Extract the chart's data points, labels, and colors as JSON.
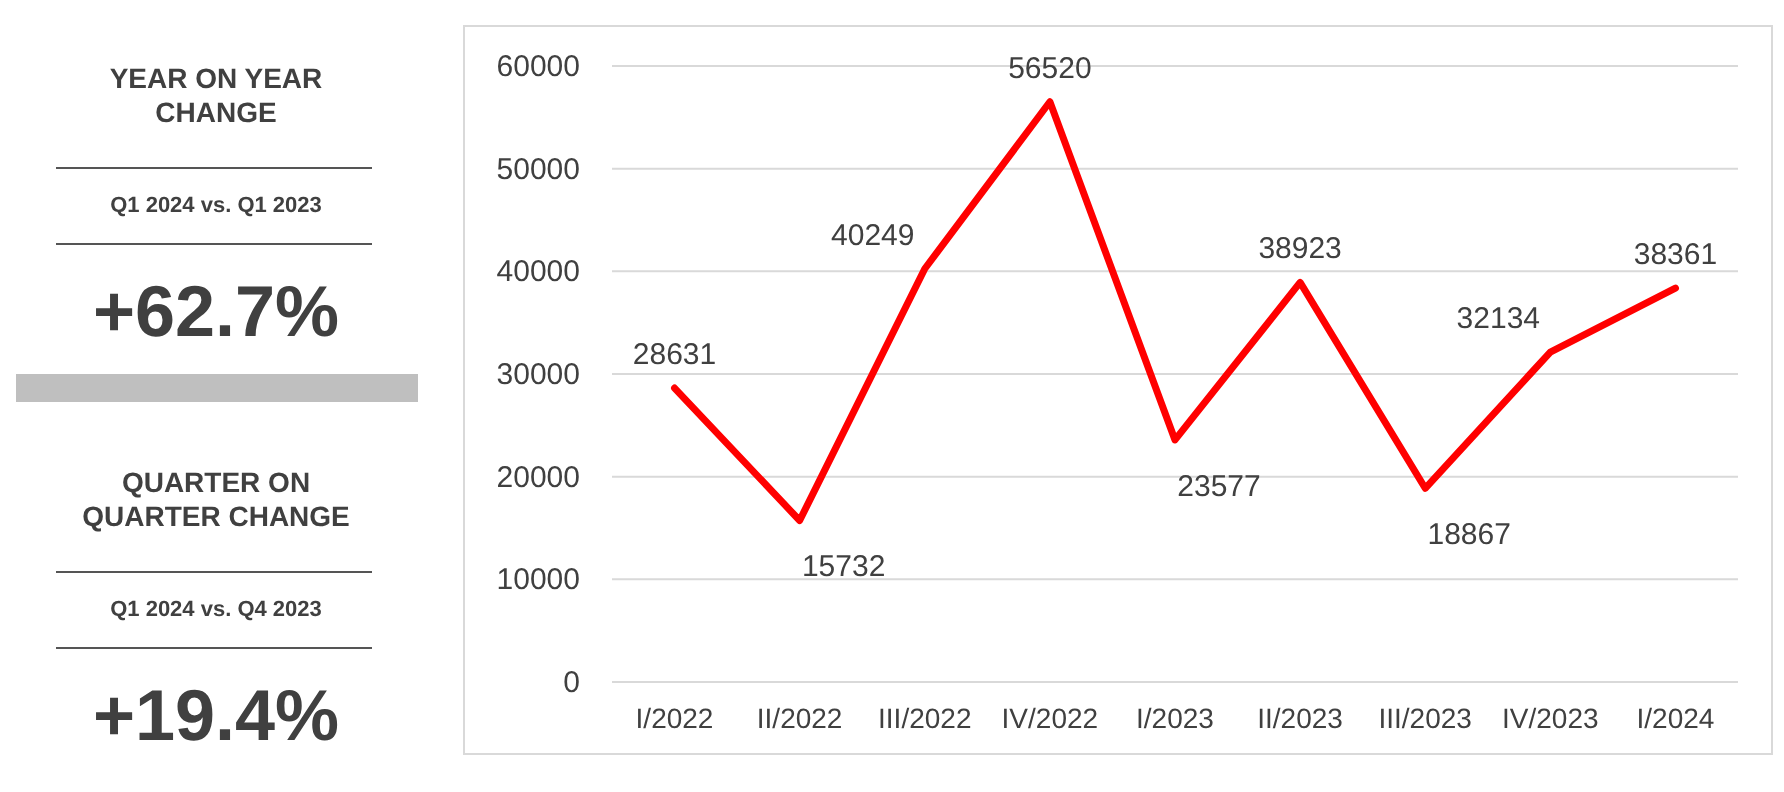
{
  "chart_data": [
    {
      "type": "other",
      "title": "YEAR ON YEAR CHANGE",
      "subtitle": "Q1 2024 vs. Q1 2023",
      "annotations": [
        "+62.7%"
      ]
    },
    {
      "type": "other",
      "title": "QUARTER ON QUARTER CHANGE",
      "subtitle": "Q1 2024 vs. Q4 2023",
      "annotations": [
        "+19.4%"
      ]
    },
    {
      "type": "line",
      "categories": [
        "I/2022",
        "II/2022",
        "III/2022",
        "IV/2022",
        "I/2023",
        "II/2023",
        "III/2023",
        "IV/2023",
        "I/2024"
      ],
      "series": [
        {
          "color": "#ff0000",
          "values": [
            28631,
            15732,
            40249,
            56520,
            23577,
            38923,
            18867,
            32134,
            38361
          ]
        }
      ],
      "ylim": [
        0,
        60000
      ],
      "yticks": [
        0,
        10000,
        20000,
        30000,
        40000,
        50000,
        60000
      ],
      "grid": "y",
      "data_labels": true,
      "marker": "none",
      "line_style": "solid"
    }
  ]
}
